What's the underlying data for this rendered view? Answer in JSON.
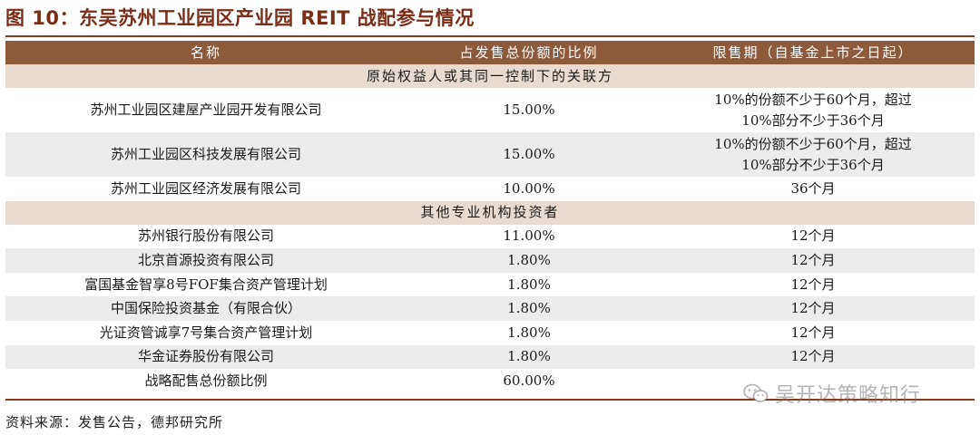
{
  "figure_title": "图 10：东吴苏州工业园区产业园 REIT 战配参与情况",
  "table": {
    "headers": [
      "名称",
      "占发售总份额的比例",
      "限售期（自基金上市之日起）"
    ],
    "sections": [
      {
        "label": "原始权益人或其同一控制下的关联方",
        "rows": [
          {
            "name": "苏州工业园区建屋产业园开发有限公司",
            "ratio": "15.00%",
            "lockup_line1": "10%的份额不少于60个月，超过",
            "lockup_line2": "10%部分不少于36个月"
          },
          {
            "name": "苏州工业园区科技发展有限公司",
            "ratio": "15.00%",
            "lockup_line1": "10%的份额不少于60个月，超过",
            "lockup_line2": "10%部分不少于36个月"
          },
          {
            "name": "苏州工业园区经济发展有限公司",
            "ratio": "10.00%",
            "lockup_line1": "36个月",
            "lockup_line2": ""
          }
        ]
      },
      {
        "label": "其他专业机构投资者",
        "rows": [
          {
            "name": "苏州银行股份有限公司",
            "ratio": "11.00%",
            "lockup_line1": "12个月",
            "lockup_line2": ""
          },
          {
            "name": "北京首源投资有限公司",
            "ratio": "1.80%",
            "lockup_line1": "12个月",
            "lockup_line2": ""
          },
          {
            "name": "富国基金智享8号FOF集合资产管理计划",
            "ratio": "1.80%",
            "lockup_line1": "12个月",
            "lockup_line2": ""
          },
          {
            "name": "中国保险投资基金（有限合伙）",
            "ratio": "1.80%",
            "lockup_line1": "12个月",
            "lockup_line2": ""
          },
          {
            "name": "光证资管诚享7号集合资产管理计划",
            "ratio": "1.80%",
            "lockup_line1": "12个月",
            "lockup_line2": ""
          },
          {
            "name": "华金证券股份有限公司",
            "ratio": "1.80%",
            "lockup_line1": "12个月",
            "lockup_line2": ""
          },
          {
            "name": "战略配售总份额比例",
            "ratio": "60.00%",
            "lockup_line1": "",
            "lockup_line2": ""
          }
        ]
      }
    ]
  },
  "source_note": "资料来源：发售公告，德邦研究所",
  "watermark": {
    "icon": "wechat-icon",
    "text": "吴开达策略知行"
  },
  "colors": {
    "title": "#7a2e18",
    "header_bg": "#8e5a3c",
    "section_bg": "#e8dcd2",
    "alt_row_bg": "#ececec",
    "rule": "#8c3a1e"
  }
}
